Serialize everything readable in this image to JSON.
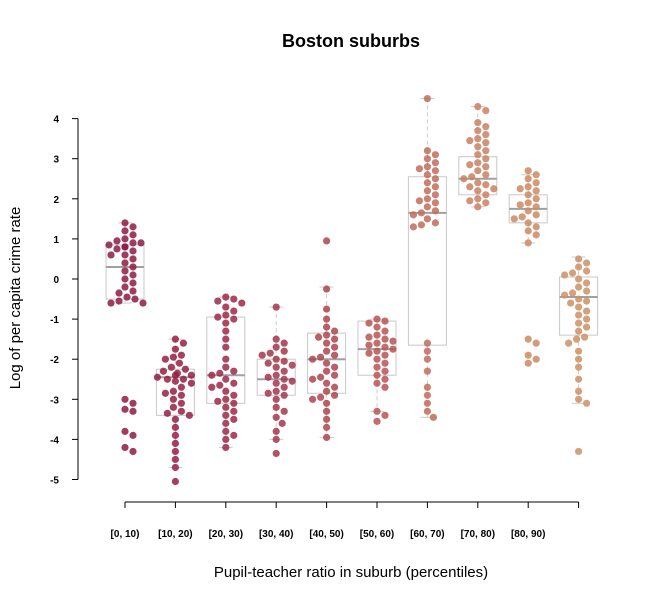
{
  "chart_data": {
    "type": "scatter",
    "title": "Boston suburbs",
    "xlabel": "Pupil-teacher ratio in suburb (percentiles)",
    "ylabel": "Log of per capita crime rate",
    "ylim": [
      -5,
      4
    ],
    "yticks": [
      4,
      3,
      2,
      1,
      0,
      -1,
      -2,
      -3,
      -4,
      -5
    ],
    "categories": [
      "[0, 10)",
      "[10, 20)",
      "[20, 30)",
      "[30, 40)",
      "[40, 50)",
      "[50, 60)",
      "[60, 70)",
      "[70, 80)",
      "[80, 90)",
      ""
    ],
    "colors": [
      "#8e1b44",
      "#951f43",
      "#9d2846",
      "#a4354b",
      "#ad444e",
      "#b75455",
      "#c06c5b",
      "#c98061",
      "#cc8a63",
      "#cd9066"
    ],
    "boxes": [
      {
        "q1": -0.5,
        "median": 0.3,
        "q3": 0.85,
        "lower": -0.6,
        "upper": 1.4
      },
      {
        "q1": -3.4,
        "median": -2.45,
        "q3": -2.25,
        "lower": -4.7,
        "upper": -1.5
      },
      {
        "q1": -3.1,
        "median": -2.4,
        "q3": -0.95,
        "lower": -4.2,
        "upper": -0.45
      },
      {
        "q1": -2.9,
        "median": -2.5,
        "q3": -2.0,
        "lower": -4.0,
        "upper": -0.7
      },
      {
        "q1": -2.85,
        "median": -2.0,
        "q3": -1.35,
        "lower": -3.95,
        "upper": -0.2
      },
      {
        "q1": -2.4,
        "median": -1.75,
        "q3": -1.05,
        "lower": -3.3,
        "upper": -1.0
      },
      {
        "q1": -1.65,
        "median": 1.65,
        "q3": 2.55,
        "lower": -3.45,
        "upper": 4.5
      },
      {
        "q1": 2.1,
        "median": 2.5,
        "q3": 3.05,
        "lower": 1.8,
        "upper": 4.3
      },
      {
        "q1": 1.4,
        "median": 1.75,
        "q3": 2.1,
        "lower": 0.9,
        "upper": 2.6
      },
      {
        "q1": -1.4,
        "median": -0.45,
        "q3": 0.05,
        "lower": -3.1,
        "upper": 0.55
      }
    ],
    "points": [
      [
        1.4,
        1.2,
        1.1,
        1.0,
        0.95,
        0.9,
        0.9,
        0.85,
        0.8,
        0.8,
        0.7,
        0.6,
        0.5,
        0.4,
        0.3,
        0.2,
        0.1,
        0.0,
        -0.1,
        -0.2,
        -0.3,
        -0.35,
        -0.5,
        -0.55,
        -0.6,
        -0.6,
        -3.0,
        -3.1,
        -3.25,
        -3.3,
        -3.8,
        -3.9,
        -4.2,
        -4.3,
        1.3,
        0.75,
        0.6,
        -0.45
      ],
      [
        -1.5,
        -1.6,
        -1.75,
        -1.9,
        -2.0,
        -2.1,
        -2.2,
        -2.25,
        -2.3,
        -2.35,
        -2.4,
        -2.45,
        -2.5,
        -2.55,
        -2.6,
        -2.7,
        -2.8,
        -2.9,
        -3.0,
        -3.1,
        -3.2,
        -3.3,
        -3.4,
        -3.5,
        -3.7,
        -3.9,
        -4.1,
        -4.3,
        -4.5,
        -4.7,
        -5.05,
        -2.4,
        -2.5,
        -3.35,
        -1.95,
        -2.85
      ],
      [
        -0.45,
        -0.55,
        -0.6,
        -0.7,
        -0.8,
        -0.95,
        -1.0,
        -1.1,
        -1.3,
        -1.5,
        -1.7,
        -2.0,
        -2.2,
        -2.3,
        -2.4,
        -2.5,
        -2.6,
        -2.7,
        -2.8,
        -2.9,
        -3.0,
        -3.1,
        -3.2,
        -3.3,
        -3.4,
        -3.5,
        -3.6,
        -3.8,
        -3.9,
        -4.0,
        -4.2,
        -0.5,
        -0.9,
        -2.35,
        -2.65,
        -3.05
      ],
      [
        -0.7,
        -1.5,
        -1.6,
        -1.7,
        -1.8,
        -1.9,
        -2.0,
        -2.1,
        -2.15,
        -2.2,
        -2.3,
        -2.4,
        -2.5,
        -2.55,
        -2.6,
        -2.7,
        -2.8,
        -2.9,
        -3.0,
        -3.2,
        -3.3,
        -3.45,
        -3.6,
        -3.8,
        -4.0,
        -4.35,
        -2.05,
        -2.45,
        -2.85,
        -1.85
      ],
      [
        0.95,
        -0.25,
        -0.75,
        -1.0,
        -1.2,
        -1.3,
        -1.4,
        -1.5,
        -1.6,
        -1.7,
        -1.8,
        -1.9,
        -2.0,
        -2.1,
        -2.2,
        -2.3,
        -2.4,
        -2.5,
        -2.6,
        -2.7,
        -2.8,
        -2.9,
        -3.0,
        -3.1,
        -3.3,
        -3.5,
        -3.7,
        -3.95,
        -1.45,
        -1.95,
        -2.45,
        -2.95
      ],
      [
        -1.0,
        -1.05,
        -1.1,
        -1.2,
        -1.3,
        -1.4,
        -1.5,
        -1.55,
        -1.6,
        -1.65,
        -1.7,
        -1.75,
        -1.8,
        -1.9,
        -2.0,
        -2.1,
        -2.2,
        -2.3,
        -2.4,
        -2.5,
        -2.6,
        -2.7,
        -3.3,
        -3.4,
        -3.55,
        -1.45,
        -1.85
      ],
      [
        4.5,
        3.2,
        3.1,
        3.0,
        2.9,
        2.8,
        2.7,
        2.6,
        2.5,
        2.4,
        2.3,
        2.2,
        2.1,
        2.0,
        1.9,
        1.8,
        1.7,
        1.6,
        1.5,
        1.4,
        1.35,
        1.3,
        -1.6,
        -1.8,
        -2.0,
        -2.3,
        -2.7,
        -2.9,
        -3.1,
        -3.3,
        -3.45,
        2.75,
        1.95,
        1.65
      ],
      [
        4.3,
        4.2,
        3.9,
        3.8,
        3.7,
        3.6,
        3.5,
        3.4,
        3.3,
        3.2,
        3.1,
        3.0,
        2.9,
        2.8,
        2.7,
        2.6,
        2.5,
        2.4,
        2.3,
        2.2,
        2.1,
        2.0,
        1.9,
        1.8,
        2.55,
        2.25,
        2.85,
        3.45,
        1.95,
        2.35
      ],
      [
        2.7,
        2.6,
        2.5,
        2.4,
        2.3,
        2.2,
        2.1,
        2.0,
        1.9,
        1.8,
        1.7,
        1.6,
        1.5,
        1.4,
        1.3,
        1.2,
        1.1,
        0.9,
        -1.5,
        -1.6,
        -1.9,
        -2.0,
        -2.1,
        2.25,
        1.85,
        1.55
      ],
      [
        0.5,
        0.4,
        0.3,
        0.2,
        0.1,
        0.0,
        -0.1,
        -0.2,
        -0.3,
        -0.4,
        -0.5,
        -0.6,
        -0.7,
        -0.8,
        -0.9,
        -1.0,
        -1.1,
        -1.2,
        -1.3,
        -1.5,
        -1.6,
        -1.8,
        -2.0,
        -2.2,
        -2.5,
        -2.8,
        -3.0,
        -3.1,
        -4.3,
        -0.35,
        -0.55,
        0.15,
        -1.45
      ]
    ]
  }
}
